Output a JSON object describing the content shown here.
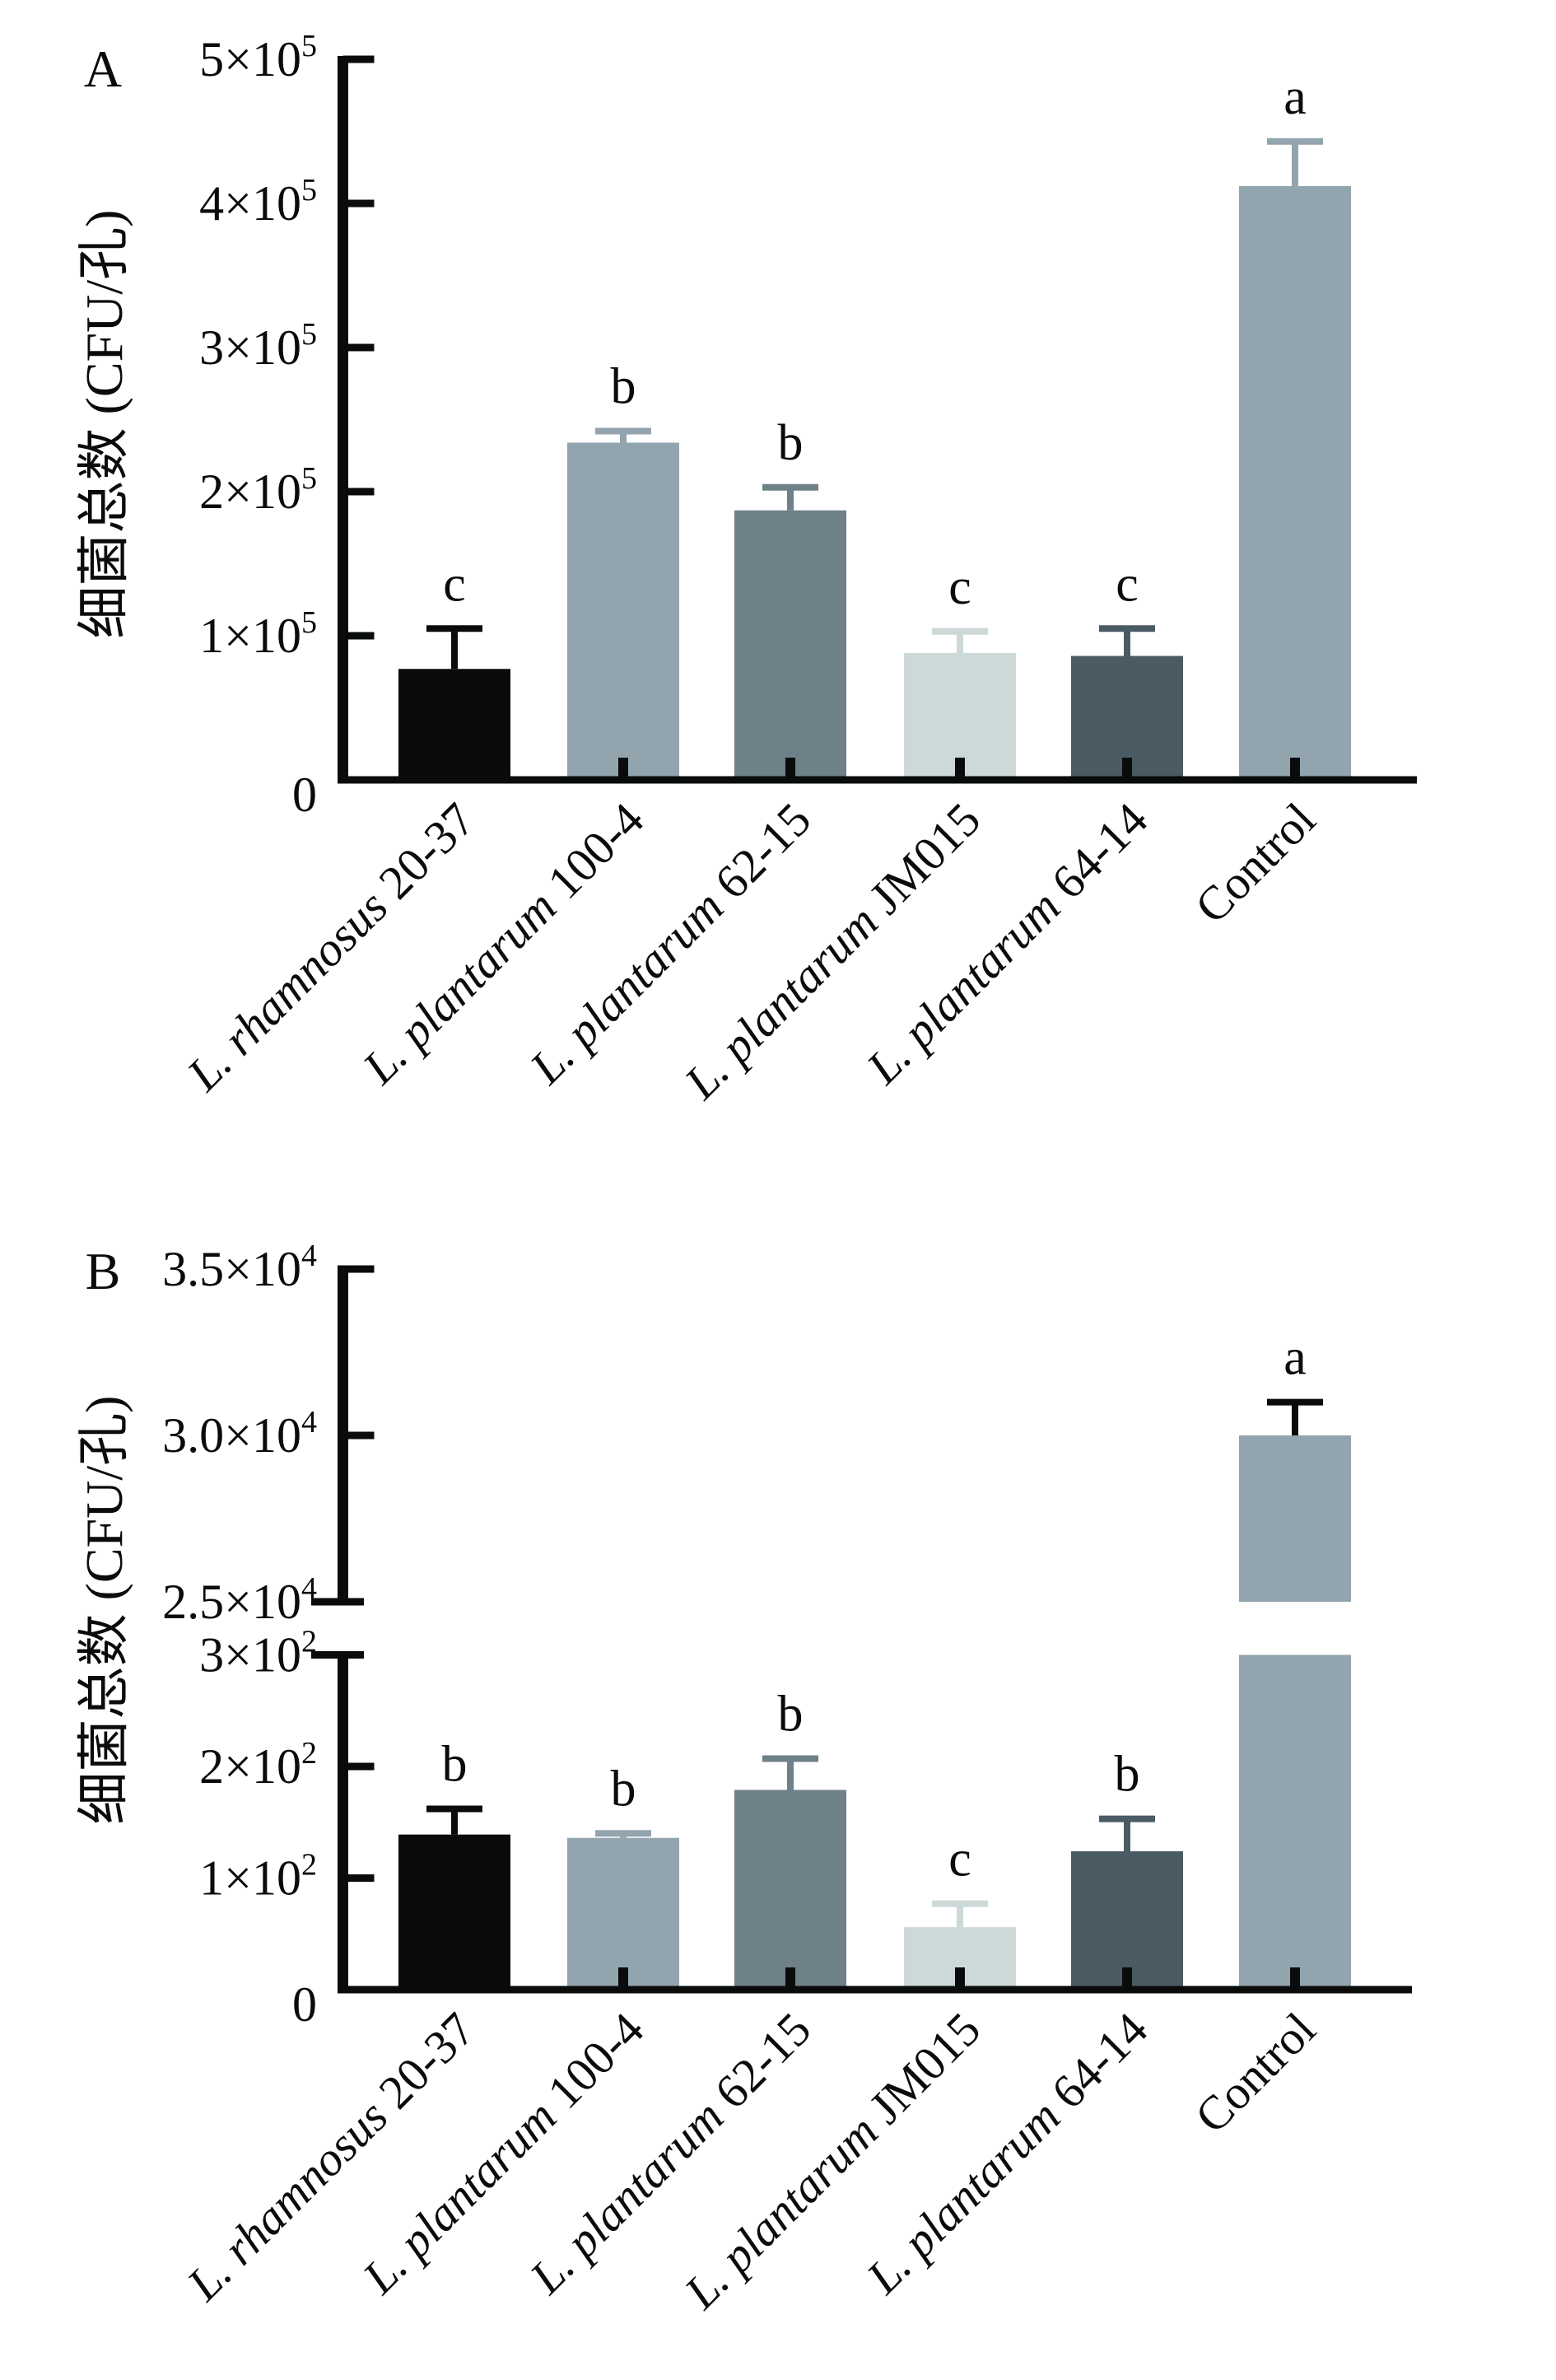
{
  "figure": {
    "panels": [
      "A",
      "B"
    ]
  },
  "chart_data": [
    {
      "type": "bar",
      "panel_label": "A",
      "title": "",
      "ylabel": "细菌总数 (CFU/孔)",
      "xlabel": "",
      "ylim": [
        0,
        500000
      ],
      "yticks": [
        0,
        100000,
        200000,
        300000,
        400000,
        500000
      ],
      "ytick_labels": [
        {
          "base": "0",
          "exp": ""
        },
        {
          "base": "1×10",
          "exp": "5"
        },
        {
          "base": "2×10",
          "exp": "5"
        },
        {
          "base": "3×10",
          "exp": "5"
        },
        {
          "base": "4×10",
          "exp": "5"
        },
        {
          "base": "5×10",
          "exp": "5"
        }
      ],
      "categories": [
        {
          "italic": "L. rhamnosus",
          "plain": " 20-37"
        },
        {
          "italic": "L. plantarum",
          "plain": " 100-4"
        },
        {
          "italic": "L. plantarum",
          "plain": " 62-15"
        },
        {
          "italic": "L. plantarum",
          "plain": " JM015"
        },
        {
          "italic": "L. plantarum",
          "plain": " 64-14"
        },
        {
          "italic": "",
          "plain": "Control"
        }
      ],
      "values": [
        77000,
        234000,
        187000,
        88000,
        86000,
        412000
      ],
      "error_upper": [
        105000,
        242000,
        203000,
        103000,
        105000,
        443000
      ],
      "significance": [
        "c",
        "b",
        "b",
        "c",
        "c",
        "a"
      ],
      "colors": [
        "#0a0c0c",
        "#92a4ae",
        "#6e8088",
        "#cdd8d9",
        "#4a5b63",
        "#92a4ae"
      ],
      "error_colors": [
        "#0a0c0c",
        "#92a4ae",
        "#6e8088",
        "#cdd8d9",
        "#4a5b63",
        "#92a4ae"
      ],
      "grid": false,
      "legend": "none"
    },
    {
      "type": "bar",
      "panel_label": "B",
      "title": "",
      "ylabel": "细菌总数 (CFU/孔)",
      "xlabel": "",
      "broken_axis": true,
      "ylim_lower": [
        0,
        300
      ],
      "ylim_upper": [
        25000,
        35000
      ],
      "yticks_lower": [
        0,
        100,
        200,
        300
      ],
      "ytick_labels_lower": [
        {
          "base": "0",
          "exp": ""
        },
        {
          "base": "1×10",
          "exp": "2"
        },
        {
          "base": "2×10",
          "exp": "2"
        },
        {
          "base": "3×10",
          "exp": "2"
        }
      ],
      "yticks_upper": [
        25000,
        30000,
        35000
      ],
      "ytick_labels_upper": [
        {
          "base": "2.5×10",
          "exp": "4"
        },
        {
          "base": "3.0×10",
          "exp": "4"
        },
        {
          "base": "3.5×10",
          "exp": "4"
        }
      ],
      "categories": [
        {
          "italic": "L. rhamnosus",
          "plain": " 20-37"
        },
        {
          "italic": "L. plantarum",
          "plain": " 100-4"
        },
        {
          "italic": "L. plantarum",
          "plain": " 62-15"
        },
        {
          "italic": "L. plantarum",
          "plain": " JM015"
        },
        {
          "italic": "L. plantarum",
          "plain": " 64-14"
        },
        {
          "italic": "",
          "plain": "Control"
        }
      ],
      "values": [
        139,
        136,
        179,
        56,
        124,
        30000
      ],
      "error_upper": [
        162,
        140,
        207,
        77,
        153,
        31000
      ],
      "significance": [
        "b",
        "b",
        "b",
        "c",
        "b",
        "a"
      ],
      "colors": [
        "#0a0c0c",
        "#92a4ae",
        "#6e8088",
        "#cdd8d9",
        "#4a5b63",
        "#92a4ae"
      ],
      "error_colors": [
        "#0a0c0c",
        "#92a4ae",
        "#6e8088",
        "#cdd8d9",
        "#4a5b63",
        "#0a0c0c"
      ],
      "grid": false,
      "legend": "none"
    }
  ]
}
